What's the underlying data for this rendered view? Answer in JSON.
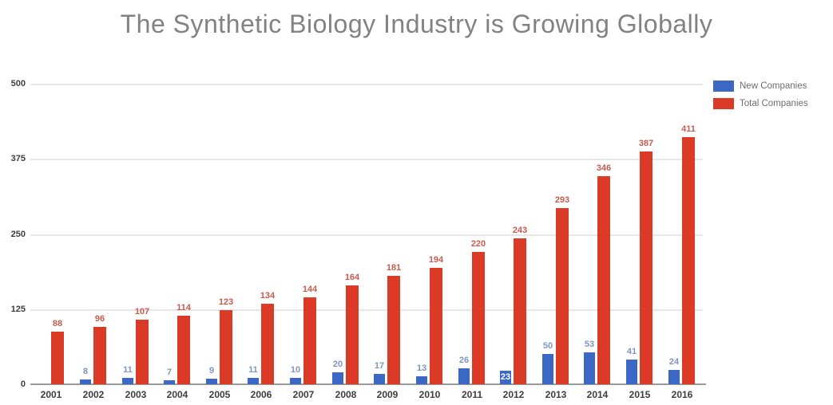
{
  "title": "The Synthetic Biology Industry is Growing Globally",
  "colors": {
    "title_text": "#828282",
    "axis_tick_text": "#3d3d3d",
    "grid_line": "#e7e7e7",
    "axis_line": "#9b9b9b",
    "bar_blue": "#3b68c4",
    "bar_red": "#db3a27",
    "label_blue": "#7e95c0",
    "label_red": "#c75b4e",
    "inside_label_text": "#ffffff",
    "legend_text": "#6e6e6e"
  },
  "legend": {
    "position": "top-right"
  },
  "chart_data": {
    "type": "bar",
    "title": "The Synthetic Biology Industry is Growing Globally",
    "categories": [
      "2001",
      "2002",
      "2003",
      "2004",
      "2005",
      "2006",
      "2007",
      "2008",
      "2009",
      "2010",
      "2011",
      "2012",
      "2013",
      "2014",
      "2015",
      "2016"
    ],
    "series": [
      {
        "name": "New Companies",
        "color": "#3b68c4",
        "label_color": "#7e95c0",
        "inside_label_index": 11,
        "values": [
          null,
          8,
          11,
          7,
          9,
          11,
          10,
          20,
          17,
          13,
          26,
          23,
          50,
          53,
          41,
          24
        ]
      },
      {
        "name": "Total Companies",
        "color": "#db3a27",
        "label_color": "#c75b4e",
        "inside_label_index": null,
        "values": [
          88,
          96,
          107,
          114,
          123,
          134,
          144,
          164,
          181,
          194,
          220,
          243,
          293,
          346,
          387,
          411
        ]
      }
    ],
    "xlabel": "",
    "ylabel": "",
    "ylim": [
      0,
      500
    ],
    "yticks": [
      0,
      125,
      250,
      375,
      500
    ],
    "grid": true,
    "legend_position": "top-right",
    "data_labels": true
  }
}
